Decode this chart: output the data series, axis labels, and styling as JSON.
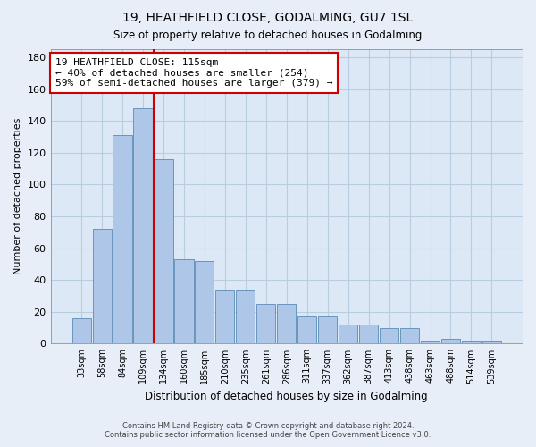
{
  "title1": "19, HEATHFIELD CLOSE, GODALMING, GU7 1SL",
  "title2": "Size of property relative to detached houses in Godalming",
  "xlabel": "Distribution of detached houses by size in Godalming",
  "ylabel": "Number of detached properties",
  "categories": [
    "33sqm",
    "58sqm",
    "84sqm",
    "109sqm",
    "134sqm",
    "160sqm",
    "185sqm",
    "210sqm",
    "235sqm",
    "261sqm",
    "286sqm",
    "311sqm",
    "337sqm",
    "362sqm",
    "387sqm",
    "413sqm",
    "438sqm",
    "463sqm",
    "488sqm",
    "514sqm",
    "539sqm"
  ],
  "values": [
    16,
    72,
    131,
    148,
    116,
    53,
    52,
    34,
    34,
    25,
    25,
    17,
    17,
    12,
    12,
    10,
    10,
    2,
    3,
    2,
    2
  ],
  "bar_color": "#aec6e8",
  "bar_edge_color": "#5a8ab5",
  "vline_x": 3.5,
  "vline_color": "#cc0000",
  "annotation_text": "19 HEATHFIELD CLOSE: 115sqm\n← 40% of detached houses are smaller (254)\n59% of semi-detached houses are larger (379) →",
  "annotation_box_color": "white",
  "annotation_edge_color": "#cc0000",
  "ylim": [
    0,
    185
  ],
  "yticks": [
    0,
    20,
    40,
    60,
    80,
    100,
    120,
    140,
    160,
    180
  ],
  "plot_bg_color": "#dce8f5",
  "fig_bg_color": "#e8eef8",
  "footer1": "Contains HM Land Registry data © Crown copyright and database right 2024.",
  "footer2": "Contains public sector information licensed under the Open Government Licence v3.0.",
  "grid_color": "#b8cde0"
}
